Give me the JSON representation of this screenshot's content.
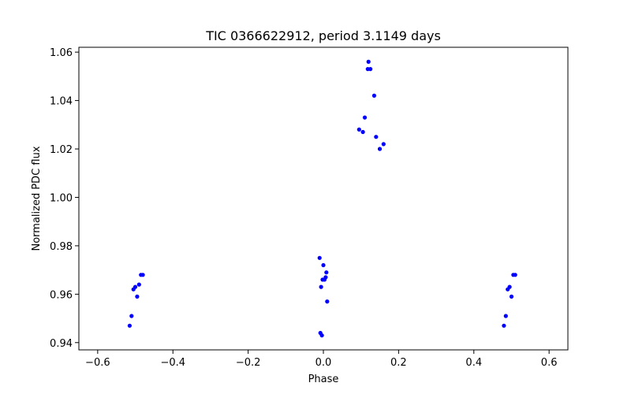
{
  "chart_data": {
    "type": "scatter",
    "title": "TIC 0366622912, period 3.1149 days",
    "xlabel": "Phase",
    "ylabel": "Normalized PDC flux",
    "xlim": [
      -0.65,
      0.65
    ],
    "ylim": [
      0.937,
      1.062
    ],
    "xticks": [
      -0.6,
      -0.4,
      -0.2,
      0.0,
      0.2,
      0.4,
      0.6
    ],
    "xtick_labels": [
      "−0.6",
      "−0.4",
      "−0.2",
      "0.0",
      "0.2",
      "0.4",
      "0.6"
    ],
    "yticks": [
      0.94,
      0.96,
      0.98,
      1.0,
      1.02,
      1.04,
      1.06
    ],
    "ytick_labels": [
      "0.94",
      "0.96",
      "0.98",
      "1.00",
      "1.02",
      "1.04",
      "1.06"
    ],
    "grid": false,
    "marker_color": "#0000ff",
    "series": [
      {
        "name": "flux",
        "points": [
          [
            -0.515,
            0.947
          ],
          [
            -0.51,
            0.951
          ],
          [
            -0.505,
            0.962
          ],
          [
            -0.5,
            0.963
          ],
          [
            -0.495,
            0.959
          ],
          [
            -0.49,
            0.964
          ],
          [
            -0.485,
            0.968
          ],
          [
            -0.48,
            0.968
          ],
          [
            0.48,
            0.947
          ],
          [
            0.485,
            0.951
          ],
          [
            0.49,
            0.962
          ],
          [
            0.495,
            0.963
          ],
          [
            0.5,
            0.959
          ],
          [
            0.505,
            0.968
          ],
          [
            0.51,
            0.968
          ],
          [
            -0.008,
            0.944
          ],
          [
            -0.004,
            0.943
          ],
          [
            0.01,
            0.957
          ],
          [
            -0.002,
            0.966
          ],
          [
            0.003,
            0.966
          ],
          [
            0.006,
            0.967
          ],
          [
            -0.006,
            0.963
          ],
          [
            0.0,
            0.972
          ],
          [
            0.008,
            0.969
          ],
          [
            -0.01,
            0.975
          ],
          [
            0.12,
            1.056
          ],
          [
            0.118,
            1.053
          ],
          [
            0.125,
            1.053
          ],
          [
            0.135,
            1.042
          ],
          [
            0.11,
            1.033
          ],
          [
            0.095,
            1.028
          ],
          [
            0.105,
            1.027
          ],
          [
            0.14,
            1.025
          ],
          [
            0.15,
            1.02
          ],
          [
            0.16,
            1.022
          ]
        ]
      }
    ]
  }
}
